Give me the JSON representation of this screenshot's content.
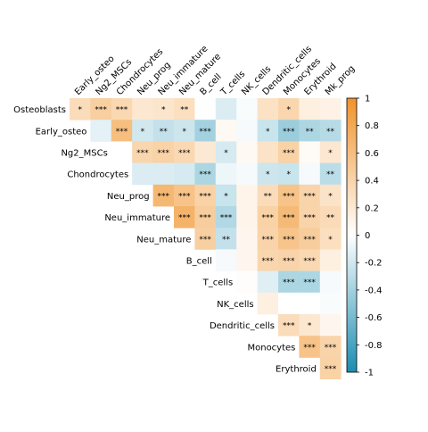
{
  "chart_data": {
    "type": "heatmap",
    "layout": "upper-triangular correlation matrix",
    "rows": [
      "Osteoblasts",
      "Early_osteo",
      "Ng2_MSCs",
      "Chondrocytes",
      "Neu_prog",
      "Neu_immature",
      "Neu_mature",
      "B_cell",
      "T_cells",
      "NK_cells",
      "Dendritic_cells",
      "Monocytes",
      "Erythroid"
    ],
    "cols": [
      "Early_osteo",
      "Ng2_MSCs",
      "Chondrocytes",
      "Neu_prog",
      "Neu_immature",
      "Neu_mature",
      "B_cell",
      "T_cells",
      "NK_cells",
      "Dendritic_cells",
      "Monocytes",
      "Erythroid",
      "Mk_prog"
    ],
    "values": [
      [
        0.32,
        0.44,
        0.36,
        0.22,
        0.24,
        0.3,
        -0.01,
        -0.16,
        -0.03,
        0.27,
        0.38,
        0.14,
        0.12
      ],
      [
        null,
        -0.12,
        0.6,
        -0.2,
        -0.26,
        -0.22,
        -0.4,
        0.06,
        -0.04,
        -0.24,
        -0.44,
        -0.36,
        -0.32
      ],
      [
        null,
        null,
        0.0,
        0.38,
        0.42,
        0.36,
        0.2,
        -0.18,
        0.06,
        0.26,
        0.42,
        0.04,
        0.22
      ],
      [
        null,
        null,
        null,
        -0.16,
        -0.16,
        -0.18,
        -0.36,
        -0.08,
        -0.04,
        -0.22,
        -0.24,
        -0.04,
        -0.3
      ],
      [
        null,
        null,
        null,
        null,
        0.66,
        0.56,
        0.42,
        -0.24,
        0.1,
        0.32,
        0.56,
        0.4,
        0.26
      ],
      [
        null,
        null,
        null,
        null,
        null,
        0.7,
        0.46,
        -0.34,
        0.1,
        0.42,
        0.64,
        0.4,
        0.34
      ],
      [
        null,
        null,
        null,
        null,
        null,
        null,
        0.44,
        -0.26,
        0.08,
        0.4,
        0.54,
        0.46,
        0.3
      ],
      [
        null,
        null,
        null,
        null,
        null,
        null,
        null,
        -0.04,
        0.08,
        0.38,
        0.4,
        0.36,
        0.14
      ],
      [
        null,
        null,
        null,
        null,
        null,
        null,
        null,
        null,
        0.02,
        -0.14,
        -0.36,
        -0.36,
        -0.04
      ],
      [
        null,
        null,
        null,
        null,
        null,
        null,
        null,
        null,
        null,
        0.14,
        0.0,
        0.0,
        -0.03
      ],
      [
        null,
        null,
        null,
        null,
        null,
        null,
        null,
        null,
        null,
        null,
        0.32,
        0.22,
        0.08
      ],
      [
        null,
        null,
        null,
        null,
        null,
        null,
        null,
        null,
        null,
        null,
        null,
        0.56,
        0.4
      ],
      [
        null,
        null,
        null,
        null,
        null,
        null,
        null,
        null,
        null,
        null,
        null,
        null,
        0.42
      ]
    ],
    "significance": [
      [
        "*",
        "***",
        "***",
        "",
        "*",
        "**",
        "",
        "",
        "",
        "",
        "*",
        "",
        ""
      ],
      [
        null,
        "",
        "***",
        "*",
        "**",
        "*",
        "***",
        "",
        "",
        "*",
        "***",
        "**",
        "**"
      ],
      [
        null,
        null,
        "",
        "***",
        "***",
        "***",
        "",
        "*",
        "",
        "",
        "***",
        "",
        "*"
      ],
      [
        null,
        null,
        null,
        "",
        "",
        "",
        "***",
        "",
        "",
        "*",
        "*",
        "",
        "**"
      ],
      [
        null,
        null,
        null,
        null,
        "***",
        "***",
        "***",
        "*",
        "",
        "**",
        "***",
        "***",
        "*"
      ],
      [
        null,
        null,
        null,
        null,
        null,
        "***",
        "***",
        "***",
        "",
        "***",
        "***",
        "***",
        "**"
      ],
      [
        null,
        null,
        null,
        null,
        null,
        null,
        "***",
        "**",
        "",
        "***",
        "***",
        "***",
        "*"
      ],
      [
        null,
        null,
        null,
        null,
        null,
        null,
        null,
        "",
        "",
        "***",
        "***",
        "***",
        ""
      ],
      [
        null,
        null,
        null,
        null,
        null,
        null,
        null,
        null,
        "",
        "",
        "***",
        "***",
        ""
      ],
      [
        null,
        null,
        null,
        null,
        null,
        null,
        null,
        null,
        null,
        "",
        "",
        "",
        ""
      ],
      [
        null,
        null,
        null,
        null,
        null,
        null,
        null,
        null,
        null,
        null,
        "***",
        "*",
        ""
      ],
      [
        null,
        null,
        null,
        null,
        null,
        null,
        null,
        null,
        null,
        null,
        null,
        "***",
        "***"
      ],
      [
        null,
        null,
        null,
        null,
        null,
        null,
        null,
        null,
        null,
        null,
        null,
        null,
        "***"
      ]
    ],
    "colorbar": {
      "min": -1,
      "max": 1,
      "ticks": [
        1,
        0.8,
        0.6,
        0.4,
        0.2,
        0,
        -0.2,
        -0.4,
        -0.6,
        -0.8,
        -1
      ],
      "tick_labels": [
        "1",
        "0.8",
        "0.6",
        "0.4",
        "0.2",
        "0",
        "-0.2",
        "-0.4",
        "-0.6",
        "-0.8",
        "-1"
      ]
    },
    "colors": {
      "positive": "#f0932a",
      "neutral": "#ffffff",
      "negative": "#1b8db1",
      "text": "#000000"
    }
  }
}
